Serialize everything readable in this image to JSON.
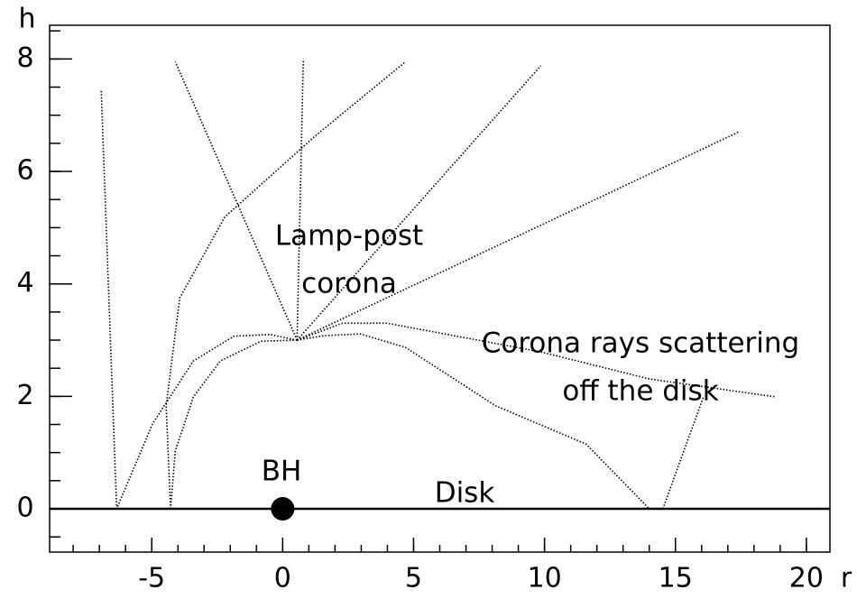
{
  "chart_data": {
    "type": "line",
    "x_label": "r",
    "y_label": "h",
    "xlim": [
      -8.9,
      20.9
    ],
    "ylim": [
      -0.77,
      8.6
    ],
    "xticks": [
      -5,
      0,
      5,
      10,
      15,
      20
    ],
    "yticks": [
      0,
      2,
      4,
      6,
      8
    ],
    "color": "#000000",
    "rays": [
      {
        "x": [
          0.55,
          -0.48,
          -1.86,
          -3.41,
          -4.97,
          -6.34
        ],
        "y": [
          3.0,
          3.1,
          3.07,
          2.63,
          1.51,
          0
        ]
      },
      {
        "x": [
          -6.34,
          -6.93
        ],
        "y": [
          0,
          7.44
        ]
      },
      {
        "x": [
          0.55,
          -0.83,
          -2.38,
          -3.41,
          -4.1,
          -4.28
        ],
        "y": [
          3.0,
          2.98,
          2.63,
          1.99,
          1.03,
          0
        ]
      },
      {
        "x": [
          -4.28,
          -4.45,
          -3.93,
          -2.21,
          1.24,
          4.69
        ],
        "y": [
          0,
          1.83,
          3.75,
          5.19,
          6.63,
          7.95
        ]
      },
      {
        "x": [
          0.55,
          -4.1
        ],
        "y": [
          3.0,
          7.95
        ]
      },
      {
        "x": [
          0.55,
          0.79
        ],
        "y": [
          3.0,
          8.0
        ]
      },
      {
        "x": [
          0.55,
          9.86
        ],
        "y": [
          3.0,
          7.88
        ]
      },
      {
        "x": [
          0.55,
          17.45
        ],
        "y": [
          3.0,
          6.71
        ]
      },
      {
        "x": [
          0.55,
          1.59,
          2.97,
          4.69,
          8.14,
          11.59,
          14.0
        ],
        "y": [
          3.0,
          3.08,
          3.11,
          2.87,
          1.83,
          1.15,
          0
        ]
      },
      {
        "x": [
          0.55,
          2.28,
          4.0,
          9.86,
          14.0,
          18.83
        ],
        "y": [
          3.0,
          3.3,
          3.3,
          2.79,
          2.31,
          1.99
        ]
      },
      {
        "x": [
          14.52,
          16.07
        ],
        "y": [
          0,
          1.99
        ]
      }
    ],
    "disk": {
      "label": "Disk",
      "y": 0
    },
    "black_hole": {
      "label": "BH",
      "x": 0,
      "y": 0
    },
    "annotations": [
      "Lamp-post",
      "corona",
      "Corona rays scattering",
      "off the disk"
    ]
  }
}
